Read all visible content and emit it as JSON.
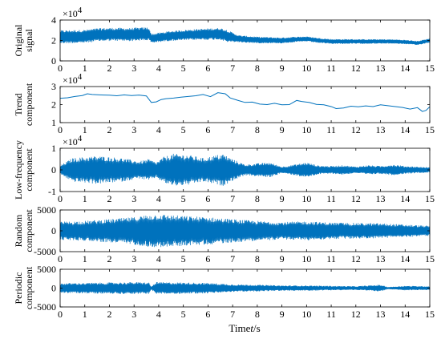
{
  "chart_data": [
    {
      "type": "line",
      "ylabel": [
        "Original",
        "signal"
      ],
      "ylim": [
        0,
        40000
      ],
      "yticks": [
        "0",
        "2",
        "4"
      ],
      "ytick_values": [
        0,
        20000,
        40000
      ],
      "exponent": "4",
      "color": "#0072BD",
      "x_range": [
        0,
        15
      ],
      "baseline": [
        [
          0,
          23500
        ],
        [
          1,
          24000
        ],
        [
          1.5,
          25500
        ],
        [
          2,
          26000
        ],
        [
          2.8,
          25800
        ],
        [
          3.2,
          26200
        ],
        [
          3.6,
          26500
        ],
        [
          3.7,
          22000
        ],
        [
          4,
          23000
        ],
        [
          4.5,
          24500
        ],
        [
          5,
          25200
        ],
        [
          5.5,
          25800
        ],
        [
          6,
          26200
        ],
        [
          6.5,
          26500
        ],
        [
          6.9,
          23500
        ],
        [
          7.3,
          21500
        ],
        [
          8,
          20500
        ],
        [
          9,
          20000
        ],
        [
          9.5,
          21000
        ],
        [
          10,
          21500
        ],
        [
          10.5,
          20000
        ],
        [
          11,
          19000
        ],
        [
          12,
          19000
        ],
        [
          13,
          19000
        ],
        [
          13.5,
          19000
        ],
        [
          14,
          18500
        ],
        [
          14.5,
          17500
        ],
        [
          15,
          20000
        ]
      ],
      "amplitude": [
        [
          0,
          6500
        ],
        [
          3.6,
          6500
        ],
        [
          3.7,
          4500
        ],
        [
          6.8,
          6000
        ],
        [
          7.2,
          3500
        ],
        [
          10,
          2500
        ],
        [
          15,
          2000
        ]
      ]
    },
    {
      "type": "line",
      "ylabel": [
        "Trend",
        "component"
      ],
      "ylim": [
        10000,
        30000
      ],
      "yticks": [
        "1",
        "2",
        "3"
      ],
      "ytick_values": [
        10000,
        20000,
        30000
      ],
      "exponent": "4",
      "color": "#0072BD",
      "x_range": [
        0,
        15
      ],
      "series": [
        [
          0,
          23500
        ],
        [
          0.3,
          23800
        ],
        [
          0.6,
          24500
        ],
        [
          0.9,
          25000
        ],
        [
          1.1,
          26000
        ],
        [
          1.3,
          25600
        ],
        [
          1.6,
          25400
        ],
        [
          2,
          25200
        ],
        [
          2.3,
          24900
        ],
        [
          2.6,
          25400
        ],
        [
          2.9,
          25000
        ],
        [
          3.2,
          25300
        ],
        [
          3.5,
          24800
        ],
        [
          3.7,
          21200
        ],
        [
          3.9,
          21500
        ],
        [
          4.1,
          22800
        ],
        [
          4.3,
          23300
        ],
        [
          4.6,
          23600
        ],
        [
          4.9,
          24100
        ],
        [
          5.2,
          24500
        ],
        [
          5.5,
          24900
        ],
        [
          5.8,
          25600
        ],
        [
          6.1,
          24400
        ],
        [
          6.4,
          26600
        ],
        [
          6.7,
          26000
        ],
        [
          6.9,
          23700
        ],
        [
          7.2,
          22400
        ],
        [
          7.5,
          21200
        ],
        [
          7.8,
          21400
        ],
        [
          8.1,
          20300
        ],
        [
          8.4,
          20000
        ],
        [
          8.7,
          20700
        ],
        [
          9,
          19900
        ],
        [
          9.3,
          20000
        ],
        [
          9.6,
          22300
        ],
        [
          9.8,
          21700
        ],
        [
          10.1,
          21200
        ],
        [
          10.4,
          20100
        ],
        [
          10.7,
          19900
        ],
        [
          11,
          18900
        ],
        [
          11.2,
          17800
        ],
        [
          11.5,
          18100
        ],
        [
          11.8,
          19100
        ],
        [
          12.1,
          18800
        ],
        [
          12.4,
          19300
        ],
        [
          12.7,
          18900
        ],
        [
          13,
          19900
        ],
        [
          13.3,
          19400
        ],
        [
          13.6,
          18900
        ],
        [
          13.9,
          18400
        ],
        [
          14.2,
          17500
        ],
        [
          14.5,
          18300
        ],
        [
          14.7,
          16200
        ],
        [
          14.85,
          16800
        ],
        [
          15,
          18800
        ]
      ]
    },
    {
      "type": "line",
      "ylabel": [
        "Low-frequency",
        "component"
      ],
      "ylim": [
        -10000,
        10000
      ],
      "yticks": [
        "-1",
        "0",
        "1"
      ],
      "ytick_values": [
        -10000,
        0,
        10000
      ],
      "exponent": "4",
      "color": "#0072BD",
      "x_range": [
        0,
        15
      ],
      "baseline": [
        [
          0,
          0
        ],
        [
          15,
          0
        ]
      ],
      "amplitude": [
        [
          0,
          2000
        ],
        [
          0.5,
          5500
        ],
        [
          1,
          6000
        ],
        [
          1.5,
          6500
        ],
        [
          2,
          6000
        ],
        [
          2.5,
          5500
        ],
        [
          3.2,
          4000
        ],
        [
          3.6,
          5000
        ],
        [
          3.9,
          3500
        ],
        [
          4.2,
          6000
        ],
        [
          4.6,
          7500
        ],
        [
          5.2,
          7000
        ],
        [
          5.8,
          5500
        ],
        [
          6.2,
          6500
        ],
        [
          6.6,
          7500
        ],
        [
          7,
          5000
        ],
        [
          7.5,
          2500
        ],
        [
          8,
          3000
        ],
        [
          8.5,
          3500
        ],
        [
          9,
          1500
        ],
        [
          9.5,
          2500
        ],
        [
          10,
          3500
        ],
        [
          10.5,
          2000
        ],
        [
          11,
          1800
        ],
        [
          11.5,
          2200
        ],
        [
          12,
          1500
        ],
        [
          12.5,
          2200
        ],
        [
          13,
          1800
        ],
        [
          13.5,
          2500
        ],
        [
          14,
          1800
        ],
        [
          15,
          1200
        ]
      ]
    },
    {
      "type": "line",
      "ylabel": [
        "Random",
        "component"
      ],
      "ylim": [
        -5000,
        5000
      ],
      "yticks": [
        "-5000",
        "0",
        "5000"
      ],
      "ytick_values": [
        -5000,
        0,
        5000
      ],
      "color": "#0072BD",
      "x_range": [
        0,
        15
      ],
      "baseline": [
        [
          0,
          0
        ],
        [
          15,
          0
        ]
      ],
      "amplitude": [
        [
          0,
          2200
        ],
        [
          1,
          2400
        ],
        [
          2,
          2800
        ],
        [
          3,
          3300
        ],
        [
          3.5,
          3800
        ],
        [
          4,
          4000
        ],
        [
          5,
          3600
        ],
        [
          6,
          3300
        ],
        [
          7,
          2800
        ],
        [
          8,
          2400
        ],
        [
          9,
          2100
        ],
        [
          10,
          2300
        ],
        [
          11,
          2000
        ],
        [
          12,
          1900
        ],
        [
          13,
          1800
        ],
        [
          14,
          1500
        ],
        [
          15,
          1200
        ]
      ]
    },
    {
      "type": "line",
      "ylabel": [
        "Periodic",
        "component"
      ],
      "ylim": [
        -5000,
        5000
      ],
      "yticks": [
        "-5000",
        "0",
        "5000"
      ],
      "ytick_values": [
        -5000,
        0,
        5000
      ],
      "color": "#0072BD",
      "x_range": [
        0,
        15
      ],
      "baseline": [
        [
          0,
          0
        ],
        [
          15,
          0
        ]
      ],
      "amplitude": [
        [
          0,
          1300
        ],
        [
          1,
          1400
        ],
        [
          2,
          1500
        ],
        [
          3,
          1600
        ],
        [
          3.6,
          1500
        ],
        [
          3.7,
          400
        ],
        [
          3.9,
          1600
        ],
        [
          5,
          1500
        ],
        [
          6,
          1400
        ],
        [
          7,
          1000
        ],
        [
          8,
          900
        ],
        [
          9,
          700
        ],
        [
          10,
          700
        ],
        [
          11,
          600
        ],
        [
          12,
          500
        ],
        [
          13,
          900
        ],
        [
          13.3,
          300
        ],
        [
          14,
          600
        ],
        [
          15,
          500
        ]
      ]
    }
  ],
  "xaxis": {
    "ticks": [
      "0",
      "1",
      "2",
      "3",
      "4",
      "5",
      "6",
      "7",
      "8",
      "9",
      "10",
      "11",
      "12",
      "13",
      "14",
      "15"
    ],
    "label_main": "Time",
    "label_italic": "t",
    "label_tail": "/s"
  }
}
